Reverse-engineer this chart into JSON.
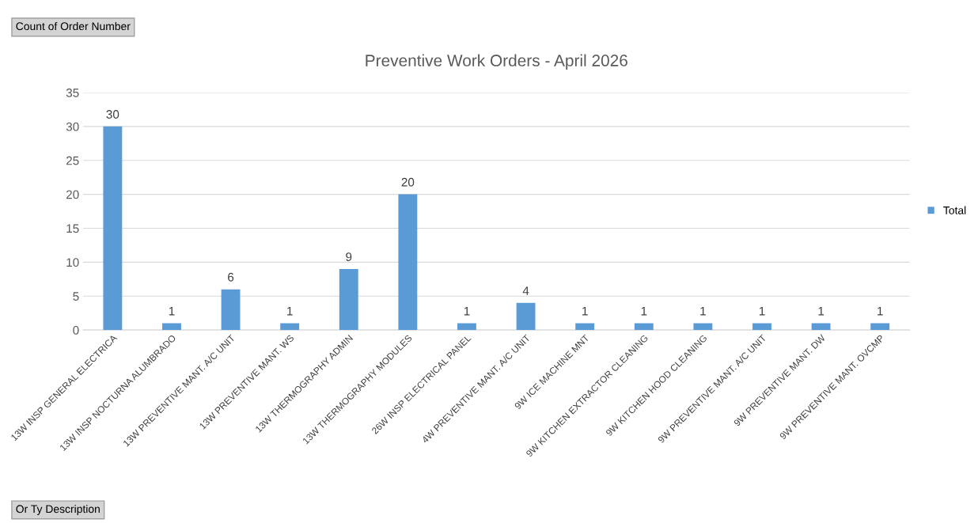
{
  "chart_data": {
    "type": "bar",
    "title": "Preventive Work Orders - April 2026",
    "categories": [
      "13W INSP GENERAL ELECTRICA",
      "13W INSP NOCTURNA ALUMBRADO",
      "13W PREVENTIVE MANT. A/C UNIT",
      "13W PREVENTIVE MANT. WS",
      "13W THERMOGRAPHY ADMIN",
      "13W THERMOGRAPHY MODULES",
      "26W INSP ELECTRICAL PANEL",
      "4W PREVENTIVE MANT. A/C UNIT",
      "9W ICE MACHINE MNT",
      "9W KITCHEN EXTRACTOR CLEANING",
      "9W KITCHEN HOOD CLEANING",
      "9W PREVENTIVE MANT. A/C UNIT",
      "9W PREVENTIVE MANT. DW",
      "9W PREVENTIVE MANT. OVCMP"
    ],
    "series": [
      {
        "name": "Total",
        "color": "#5b9bd5",
        "values": [
          30,
          1,
          6,
          1,
          9,
          20,
          1,
          4,
          1,
          1,
          1,
          1,
          1,
          1
        ]
      }
    ],
    "ylim": [
      0,
      35
    ],
    "yticks": [
      0,
      5,
      10,
      15,
      20,
      25,
      30,
      35
    ],
    "grid": "y",
    "legend": "right",
    "data_labels": true,
    "annotations": [
      "Count of Order Number",
      "Or Ty Description"
    ]
  }
}
